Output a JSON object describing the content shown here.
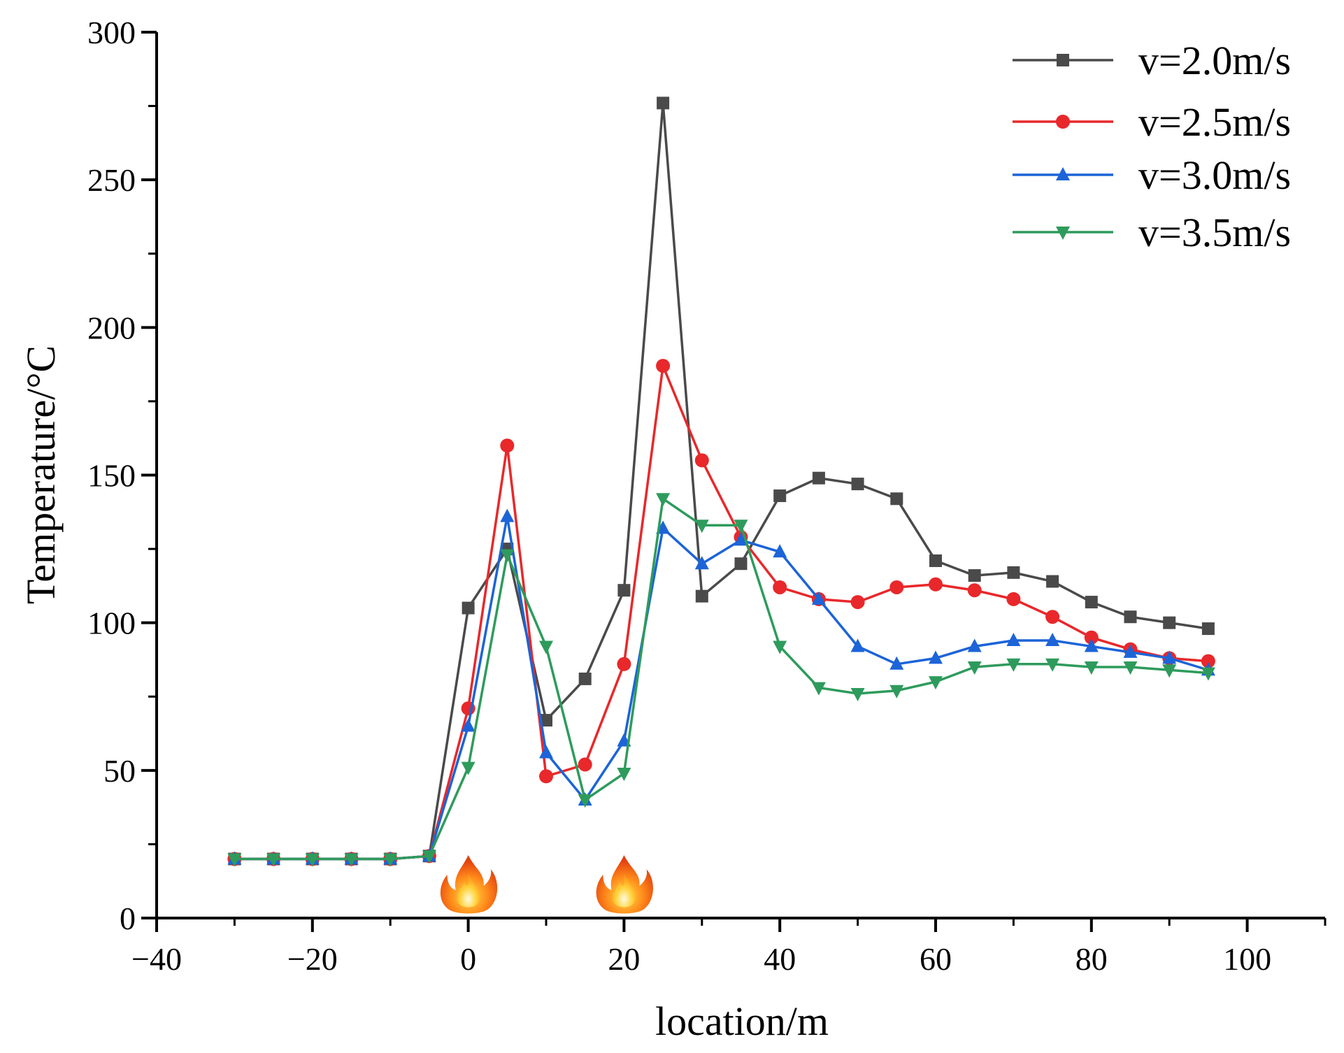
{
  "chart_data": {
    "type": "line",
    "title": "",
    "xlabel": "location/m",
    "ylabel": "Temperature/°C",
    "xlim": [
      -40,
      110
    ],
    "ylim": [
      0,
      300
    ],
    "xticks": [
      -40,
      -20,
      0,
      20,
      40,
      60,
      80,
      100
    ],
    "xtick_labels": [
      "−40",
      "−20",
      "0",
      "20",
      "40",
      "60",
      "80",
      "100"
    ],
    "yticks": [
      0,
      50,
      100,
      150,
      200,
      250,
      300
    ],
    "ytick_labels": [
      "0",
      "50",
      "100",
      "150",
      "200",
      "250",
      "300"
    ],
    "grid": false,
    "legend_position": "top-right",
    "x": [
      -30,
      -25,
      -20,
      -15,
      -10,
      -5,
      0,
      5,
      10,
      15,
      20,
      25,
      30,
      35,
      40,
      45,
      50,
      55,
      60,
      65,
      70,
      75,
      80,
      85,
      90,
      95
    ],
    "series": [
      {
        "name": "v=2.0m/s",
        "color": "#4a4a4a",
        "marker": "square",
        "values": [
          20,
          20,
          20,
          20,
          20,
          21,
          105,
          125,
          67,
          81,
          111,
          276,
          109,
          120,
          143,
          149,
          147,
          142,
          121,
          116,
          117,
          114,
          107,
          102,
          100,
          98
        ]
      },
      {
        "name": "v=2.5m/s",
        "color": "#e8282b",
        "marker": "circle",
        "values": [
          20,
          20,
          20,
          20,
          20,
          21,
          71,
          160,
          48,
          52,
          86,
          187,
          155,
          129,
          112,
          108,
          107,
          112,
          113,
          111,
          108,
          102,
          95,
          91,
          88,
          87
        ]
      },
      {
        "name": "v=3.0m/s",
        "color": "#1c64d8",
        "marker": "triangle-up",
        "values": [
          20,
          20,
          20,
          20,
          20,
          21,
          65,
          136,
          56,
          40,
          60,
          132,
          120,
          128,
          124,
          108,
          92,
          86,
          88,
          92,
          94,
          94,
          92,
          90,
          88,
          84
        ]
      },
      {
        "name": "v=3.5m/s",
        "color": "#2e9b5c",
        "marker": "triangle-down",
        "values": [
          20,
          20,
          20,
          20,
          20,
          21,
          51,
          123,
          92,
          40,
          49,
          142,
          133,
          133,
          92,
          78,
          76,
          77,
          80,
          85,
          86,
          86,
          85,
          85,
          84,
          83
        ]
      }
    ],
    "annotations": [
      {
        "type": "fire-icon",
        "x": 0
      },
      {
        "type": "fire-icon",
        "x": 20
      }
    ]
  }
}
